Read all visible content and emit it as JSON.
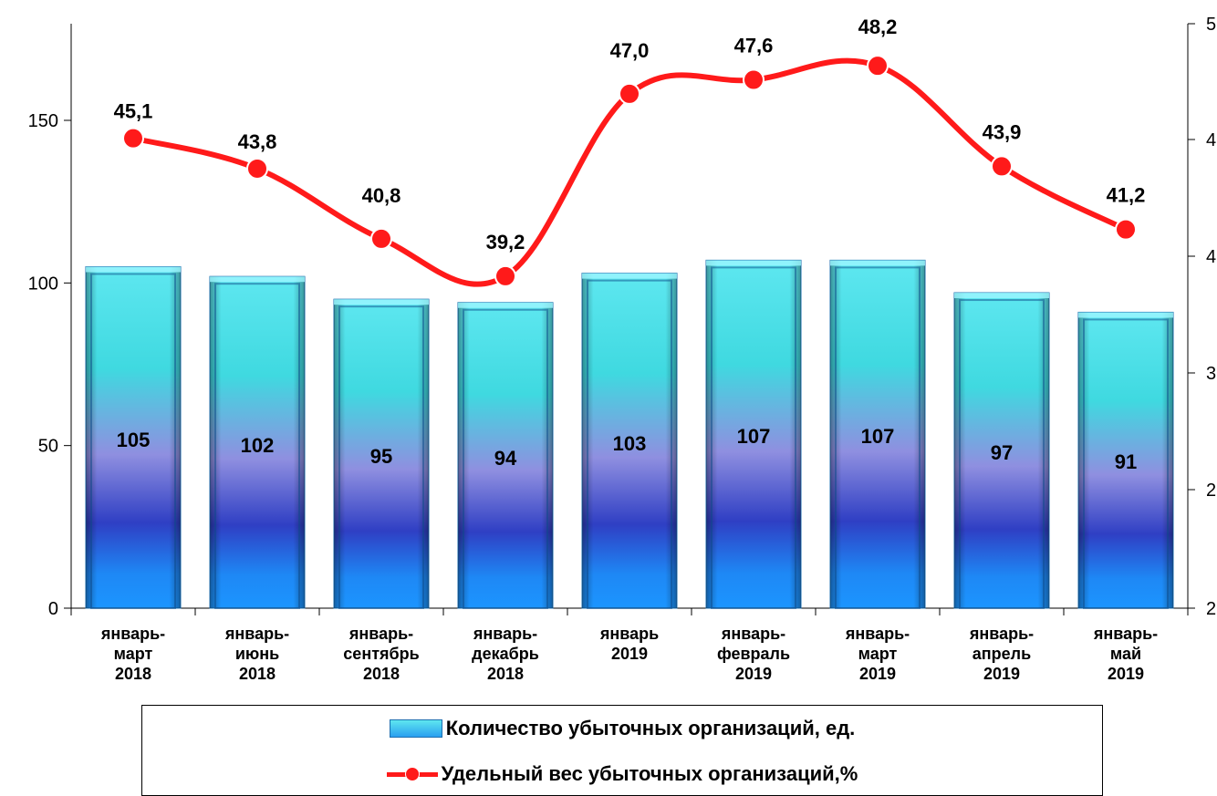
{
  "chart_data": {
    "type": "bar",
    "categories": [
      [
        "январь-",
        "март",
        "2018"
      ],
      [
        "январь-",
        "июнь",
        "2018"
      ],
      [
        "январь-",
        "сентябрь",
        "2018"
      ],
      [
        "январь-",
        "декабрь",
        "2018"
      ],
      [
        "январь",
        "2019"
      ],
      [
        "январь-",
        "февраль",
        "2019"
      ],
      [
        "январь-",
        "март",
        "2019"
      ],
      [
        "январь-",
        "апрель",
        "2019"
      ],
      [
        "январь-",
        "май",
        "2019"
      ]
    ],
    "series": [
      {
        "name": "Количество убыточных организаций, ед.",
        "type": "bar",
        "axis": "left",
        "values": [
          105,
          102,
          95,
          94,
          103,
          107,
          107,
          97,
          91
        ],
        "labels": [
          "105",
          "102",
          "95",
          "94",
          "103",
          "107",
          "107",
          "97",
          "91"
        ],
        "colors": {
          "top": "#5ee7f0",
          "mid": "#2f3fc4",
          "bottom": "#1e88f5"
        }
      },
      {
        "name": "Удельный вес убыточных организаций,%",
        "type": "line",
        "axis": "right",
        "values": [
          45.1,
          43.8,
          40.8,
          39.2,
          47.0,
          47.6,
          48.2,
          43.9,
          41.2
        ],
        "labels": [
          "45,1",
          "43,8",
          "40,8",
          "39,2",
          "47,0",
          "47,6",
          "48,2",
          "43,9",
          "41,2"
        ],
        "color": "#ff1a1a"
      }
    ],
    "y_left": {
      "ticks": [
        0,
        50,
        100,
        150
      ],
      "ylim": [
        0,
        150
      ]
    },
    "y_right": {
      "ticks": [
        "2",
        "2",
        "3",
        "4",
        "4",
        "5"
      ]
    },
    "legend_position": "bottom",
    "grid": false
  },
  "legend": {
    "items": [
      {
        "label": "Количество убыточных организаций, ед."
      },
      {
        "label": "Удельный вес убыточных организаций,%"
      }
    ]
  }
}
